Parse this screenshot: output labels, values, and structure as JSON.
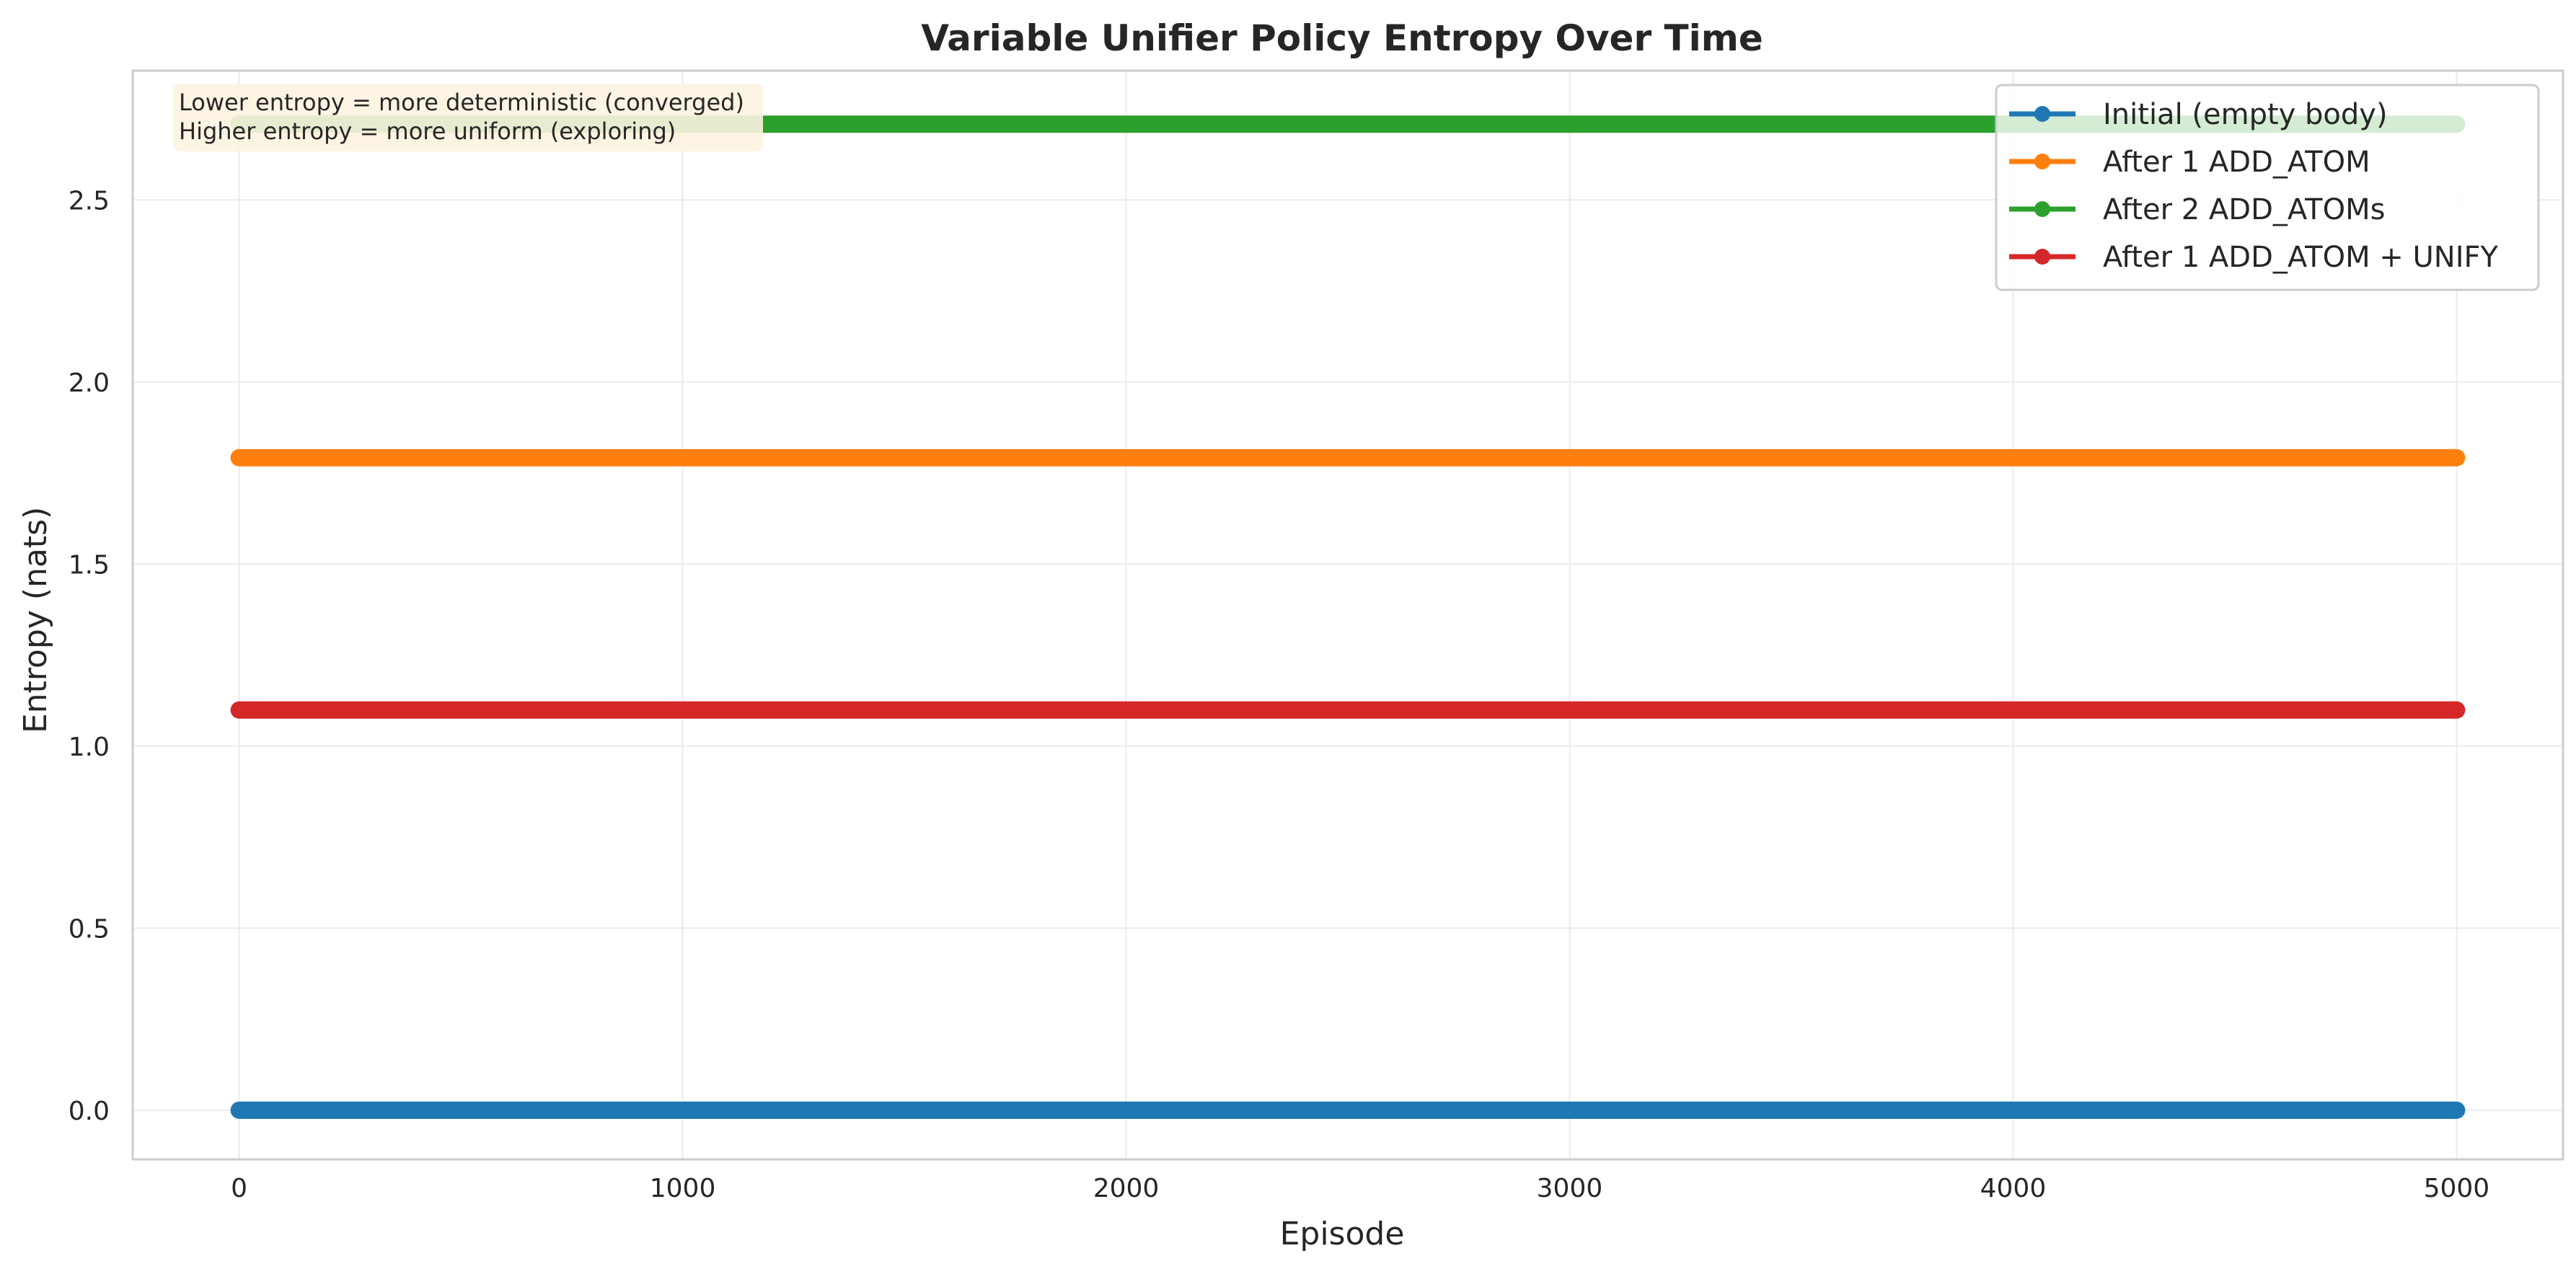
{
  "chart_data": {
    "type": "line",
    "title": "Variable Unifier Policy Entropy Over Time",
    "xlabel": "Episode",
    "ylabel": "Entropy (nats)",
    "xlim": [
      -240,
      5240
    ],
    "ylim": [
      -0.135,
      2.855
    ],
    "x_ticks": [
      0,
      1000,
      2000,
      3000,
      4000,
      5000
    ],
    "y_ticks": [
      0.0,
      0.5,
      1.0,
      1.5,
      2.0,
      2.5
    ],
    "x_tick_labels": [
      "0",
      "1000",
      "2000",
      "3000",
      "4000",
      "5000"
    ],
    "y_tick_labels": [
      "0.0",
      "0.5",
      "1.0",
      "1.5",
      "2.0",
      "2.5"
    ],
    "grid": true,
    "legend_position": "top-right",
    "x_range": [
      0,
      5000
    ],
    "series": [
      {
        "name": "Initial (empty body)",
        "value": 0.0,
        "color": "#1f77b4"
      },
      {
        "name": "After 1 ADD_ATOM",
        "value": 1.792,
        "color": "#ff7f0e"
      },
      {
        "name": "After 2 ADD_ATOMs",
        "value": 2.708,
        "color": "#2ca02c"
      },
      {
        "name": "After 1 ADD_ATOM + UNIFY",
        "value": 1.099,
        "color": "#d62728"
      }
    ],
    "annotation": {
      "lines": [
        "Lower entropy = more deterministic (converged)",
        "Higher entropy = more uniform (exploring)"
      ],
      "background": "#fdf3e1"
    }
  }
}
